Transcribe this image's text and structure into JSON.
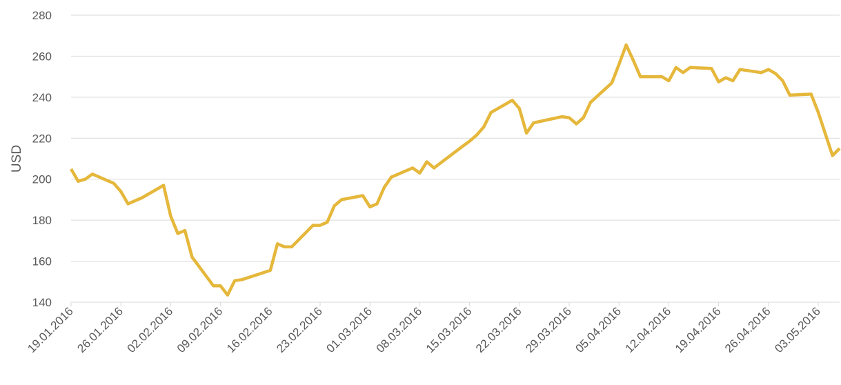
{
  "chart_data": {
    "type": "line",
    "y_label": "USD",
    "x": [
      "19.01.2016",
      "20.01.2016",
      "21.01.2016",
      "22.01.2016",
      "25.01.2016",
      "26.01.2016",
      "27.01.2016",
      "29.01.2016",
      "01.02.2016",
      "02.02.2016",
      "03.02.2016",
      "04.02.2016",
      "05.02.2016",
      "08.02.2016",
      "09.02.2016",
      "10.02.2016",
      "11.02.2016",
      "12.02.2016",
      "16.02.2016",
      "17.02.2016",
      "18.02.2016",
      "19.02.2016",
      "22.02.2016",
      "23.02.2016",
      "24.02.2016",
      "25.02.2016",
      "26.02.2016",
      "29.02.2016",
      "01.03.2016",
      "02.03.2016",
      "03.03.2016",
      "04.03.2016",
      "07.03.2016",
      "08.03.2016",
      "09.03.2016",
      "10.03.2016",
      "14.03.2016",
      "15.03.2016",
      "16.03.2016",
      "17.03.2016",
      "18.03.2016",
      "21.03.2016",
      "22.03.2016",
      "23.03.2016",
      "24.03.2016",
      "28.03.2016",
      "29.03.2016",
      "30.03.2016",
      "31.03.2016",
      "01.04.2016",
      "04.04.2016",
      "05.04.2016",
      "06.04.2016",
      "07.04.2016",
      "08.04.2016",
      "11.04.2016",
      "12.04.2016",
      "13.04.2016",
      "14.04.2016",
      "15.04.2016",
      "18.04.2016",
      "19.04.2016",
      "20.04.2016",
      "21.04.2016",
      "22.04.2016",
      "25.04.2016",
      "26.04.2016",
      "27.04.2016",
      "28.04.2016",
      "29.04.2016",
      "02.05.2016",
      "03.05.2016",
      "04.05.2016",
      "05.05.2016",
      "06.05.2016"
    ],
    "series": [
      {
        "name": "USD",
        "color": "#e5b73b",
        "values": [
          205,
          199,
          200,
          202.5,
          198,
          194,
          188,
          191,
          197,
          182,
          173.5,
          175,
          162,
          148,
          148,
          143.5,
          150.5,
          151,
          155.5,
          168.5,
          167,
          167,
          177.5,
          177.5,
          179,
          187,
          190,
          192,
          186.5,
          188,
          196,
          201,
          205.5,
          203,
          208.5,
          205.5,
          216,
          218.5,
          221.5,
          225.5,
          232.5,
          238.5,
          234.5,
          222.5,
          227.5,
          230.5,
          230,
          227,
          230,
          237.5,
          247,
          256,
          265.5,
          258,
          250,
          250,
          248,
          254.5,
          252,
          254.5,
          254,
          247.5,
          249.5,
          248,
          253.5,
          252,
          253.5,
          251.5,
          248,
          241,
          241.5,
          232.5,
          222,
          211.5,
          215
        ]
      }
    ],
    "xlim": [
      "19.01.2016",
      "06.05.2016"
    ],
    "xticks": [
      "19.01.2016",
      "26.01.2016",
      "02.02.2016",
      "09.02.2016",
      "16.02.2016",
      "23.02.2016",
      "01.03.2016",
      "08.03.2016",
      "15.03.2016",
      "22.03.2016",
      "29.03.2016",
      "05.04.2016",
      "12.04.2016",
      "19.04.2016",
      "26.04.2016",
      "03.05.2016"
    ],
    "ylim": [
      140,
      280
    ],
    "yticks": [
      140,
      160,
      180,
      200,
      220,
      240,
      260,
      280
    ],
    "grid": true
  }
}
